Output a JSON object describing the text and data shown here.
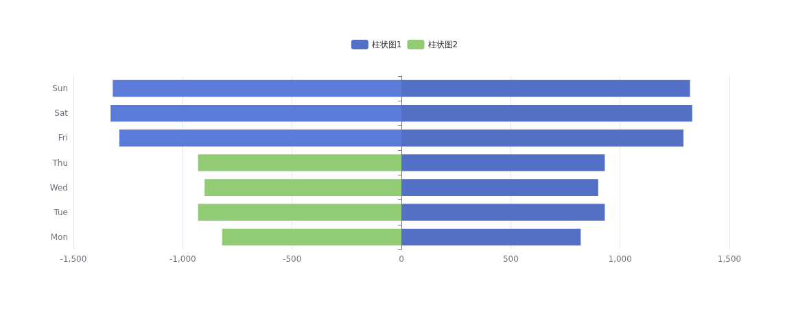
{
  "chart_data": {
    "type": "bar",
    "orientation": "horizontal",
    "stacked": true,
    "categories": [
      "Sun",
      "Sat",
      "Fri",
      "Thu",
      "Wed",
      "Tue",
      "Mon"
    ],
    "series": [
      {
        "name": "柱状图1",
        "color": "#5470c6",
        "values": [
          1320,
          1330,
          1290,
          930,
          900,
          930,
          820
        ]
      },
      {
        "name": "柱状图2",
        "color": "#91cc75",
        "colors": [
          "#5b7bd9",
          "#5b7bd9",
          "#5b7bd9",
          "#91cc75",
          "#91cc75",
          "#91cc75",
          "#91cc75"
        ],
        "values": [
          -1320,
          -1330,
          -1290,
          -930,
          -900,
          -930,
          -820
        ]
      }
    ],
    "xlim": [
      -1500,
      1500
    ],
    "xticks": [
      {
        "value": -1500,
        "label": "-1,500"
      },
      {
        "value": -1000,
        "label": "-1,000"
      },
      -500,
      0,
      500,
      {
        "value": 1000,
        "label": "1,000"
      },
      {
        "value": 1500,
        "label": "1,500"
      }
    ],
    "grid": "x",
    "legend": "top"
  }
}
